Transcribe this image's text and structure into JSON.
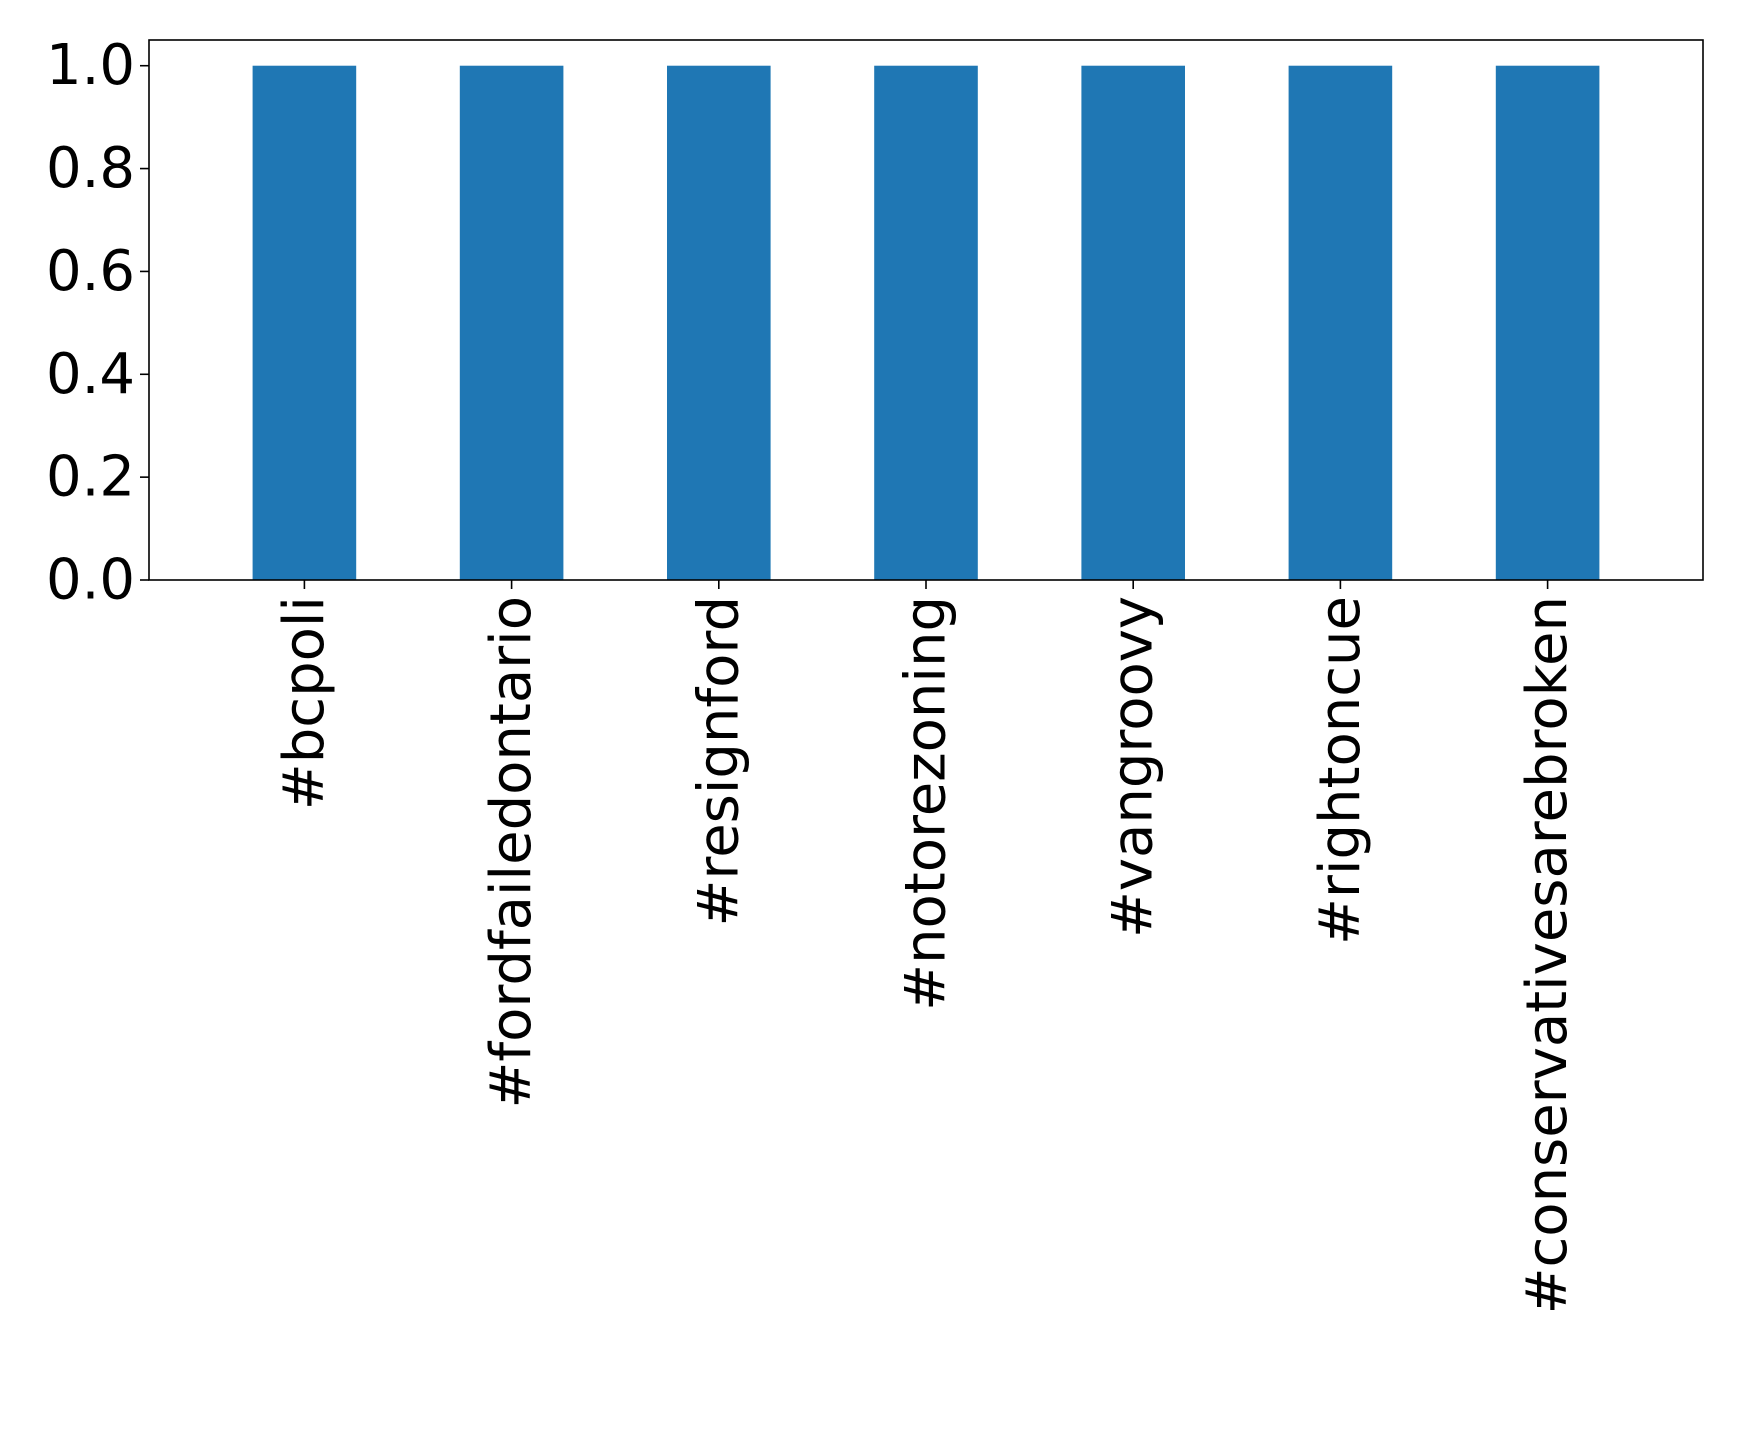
{
  "chart_data": {
    "type": "bar",
    "categories": [
      "#bcpoli",
      "#fordfailedontario",
      "#resignford",
      "#notorezoning",
      "#vangroovy",
      "#rightoncue",
      "#conservativesarebroken"
    ],
    "values": [
      1.0,
      1.0,
      1.0,
      1.0,
      1.0,
      1.0,
      1.0
    ],
    "title": "",
    "xlabel": "",
    "ylabel": "",
    "ylim": [
      0,
      1.05
    ],
    "yticks": [
      "0.0",
      "0.2",
      "0.4",
      "0.6",
      "0.8",
      "1.0"
    ],
    "bar_color": "#1f77b4",
    "grid": false,
    "legend": "none"
  }
}
